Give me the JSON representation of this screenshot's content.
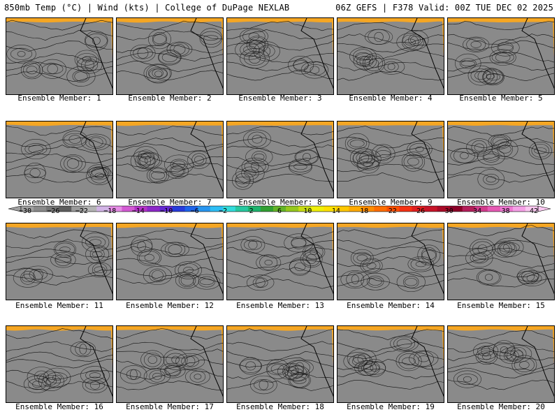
{
  "header": {
    "left": "850mb Temp (°C) | Wind (kts) | College of DuPage NEXLAB",
    "right": "06Z GEFS | F378 Valid: 00Z TUE DEC 02 2025"
  },
  "members": [
    "Ensemble Member: 1",
    "Ensemble Member: 2",
    "Ensemble Member: 3",
    "Ensemble Member: 4",
    "Ensemble Member: 5",
    "Ensemble Member: 6",
    "Ensemble Member: 7",
    "Ensemble Member: 8",
    "Ensemble Member: 9",
    "Ensemble Member: 10",
    "Ensemble Member: 11",
    "Ensemble Member: 12",
    "Ensemble Member: 13",
    "Ensemble Member: 14",
    "Ensemble Member: 15",
    "Ensemble Member: 16",
    "Ensemble Member: 17",
    "Ensemble Member: 18",
    "Ensemble Member: 19",
    "Ensemble Member: 20"
  ],
  "colorbar": {
    "labels": [
      "−30",
      "−26",
      "−22",
      "−18",
      "−14",
      "−10",
      "−6",
      "−2",
      "2",
      "6",
      "10",
      "14",
      "18",
      "22",
      "26",
      "30",
      "34",
      "38",
      "42"
    ],
    "colors": [
      "#a0a0a0",
      "#8a8a8a",
      "#747474",
      "#5e5e5e",
      "#9a9a9a",
      "#b4b4b4",
      "#d2b4e6",
      "#e68ce6",
      "#d35ad3",
      "#b433c8",
      "#8c28c8",
      "#6428d2",
      "#283cdc",
      "#1e64eb",
      "#2896f0",
      "#2dbef5",
      "#32dcdc",
      "#28c8a0",
      "#1eb46e",
      "#32a032",
      "#64b428",
      "#96c81e",
      "#c8dc14",
      "#f0f00a",
      "#ffe100",
      "#ffc800",
      "#ffaa00",
      "#ff8c00",
      "#ff6e00",
      "#ff5000",
      "#f53214",
      "#e11e1e",
      "#c81428",
      "#aa0a28",
      "#8c0028",
      "#b41e5a",
      "#d23c8c",
      "#e65ab4",
      "#f078d2",
      "#f5a0e6",
      "#fac8f0"
    ]
  }
}
